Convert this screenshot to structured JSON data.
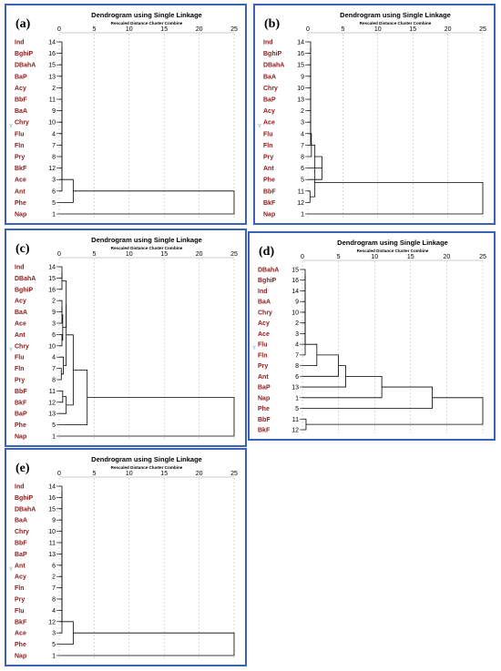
{
  "common": {
    "title": "Dendrogram using Single Linkage",
    "subtitle": "Rescaled Distance Cluster Combine",
    "ticks": [
      "0",
      "5",
      "10",
      "15",
      "20",
      "25"
    ],
    "marker": "Y"
  },
  "colors": {
    "frame": "#3a63b8",
    "label": "#8b1a1a",
    "line": "#000000",
    "grid": "#b5b5b5"
  },
  "chart_data": [
    {
      "type": "dendrogram",
      "panel": "(a)",
      "xlim": [
        0,
        25
      ],
      "leaves": [
        {
          "name": "Ind",
          "id": "14"
        },
        {
          "name": "BghiP",
          "id": "16"
        },
        {
          "name": "DBahA",
          "id": "15"
        },
        {
          "name": "BaP",
          "id": "13"
        },
        {
          "name": "Acy",
          "id": "2"
        },
        {
          "name": "BbF",
          "id": "11"
        },
        {
          "name": "BaA",
          "id": "9"
        },
        {
          "name": "Chry",
          "id": "10"
        },
        {
          "name": "Flu",
          "id": "4"
        },
        {
          "name": "Fln",
          "id": "7"
        },
        {
          "name": "Pry",
          "id": "8"
        },
        {
          "name": "BkF",
          "id": "12"
        },
        {
          "name": "Ace",
          "id": "3"
        },
        {
          "name": "Ant",
          "id": "6"
        },
        {
          "name": "Phe",
          "id": "5"
        },
        {
          "name": "Nap",
          "id": "1"
        }
      ],
      "merges": [
        [
          0,
          1,
          0
        ],
        [
          16,
          2,
          0
        ],
        [
          17,
          3,
          0
        ],
        [
          18,
          4,
          0
        ],
        [
          19,
          5,
          0
        ],
        [
          20,
          6,
          0
        ],
        [
          21,
          7,
          0
        ],
        [
          22,
          8,
          0
        ],
        [
          23,
          9,
          0
        ],
        [
          24,
          10,
          0
        ],
        [
          25,
          11,
          0
        ],
        [
          26,
          12,
          0
        ],
        [
          27,
          13,
          0
        ],
        [
          28,
          14,
          2
        ],
        [
          29,
          15,
          25
        ]
      ]
    },
    {
      "type": "dendrogram",
      "panel": "(b)",
      "xlim": [
        0,
        25
      ],
      "leaves": [
        {
          "name": "Ind",
          "id": "14"
        },
        {
          "name": "BghiP",
          "id": "16"
        },
        {
          "name": "DBahA",
          "id": "15"
        },
        {
          "name": "BaA",
          "id": "9"
        },
        {
          "name": "Chry",
          "id": "10"
        },
        {
          "name": "BaP",
          "id": "13"
        },
        {
          "name": "Acy",
          "id": "2"
        },
        {
          "name": "Ace",
          "id": "3"
        },
        {
          "name": "Flu",
          "id": "4"
        },
        {
          "name": "Fln",
          "id": "7"
        },
        {
          "name": "Pry",
          "id": "8"
        },
        {
          "name": "Ant",
          "id": "6"
        },
        {
          "name": "Phe",
          "id": "5"
        },
        {
          "name": "BbF",
          "id": "11"
        },
        {
          "name": "BkF",
          "id": "12"
        },
        {
          "name": "Nap",
          "id": "1"
        }
      ],
      "merges": [
        [
          0,
          1,
          0
        ],
        [
          16,
          2,
          0
        ],
        [
          17,
          3,
          0
        ],
        [
          18,
          4,
          0
        ],
        [
          19,
          5,
          0
        ],
        [
          20,
          6,
          0
        ],
        [
          21,
          7,
          0
        ],
        [
          22,
          8,
          0
        ],
        [
          23,
          9,
          0
        ],
        [
          24,
          10,
          0.5
        ],
        [
          25,
          11,
          1
        ],
        [
          26,
          12,
          2
        ],
        [
          13,
          14,
          0.3
        ],
        [
          27,
          28,
          1
        ],
        [
          29,
          15,
          25
        ]
      ]
    },
    {
      "type": "dendrogram",
      "panel": "(c)",
      "xlim": [
        0,
        25
      ],
      "leaves": [
        {
          "name": "Ind",
          "id": "14"
        },
        {
          "name": "DBahA",
          "id": "15"
        },
        {
          "name": "BghiP",
          "id": "16"
        },
        {
          "name": "Acy",
          "id": "2"
        },
        {
          "name": "BaA",
          "id": "9"
        },
        {
          "name": "Ace",
          "id": "3"
        },
        {
          "name": "Ant",
          "id": "6"
        },
        {
          "name": "Chry",
          "id": "10"
        },
        {
          "name": "Flu",
          "id": "4"
        },
        {
          "name": "Fln",
          "id": "7"
        },
        {
          "name": "Pry",
          "id": "8"
        },
        {
          "name": "BbF",
          "id": "11"
        },
        {
          "name": "BkF",
          "id": "12"
        },
        {
          "name": "BaP",
          "id": "13"
        },
        {
          "name": "Phe",
          "id": "5"
        },
        {
          "name": "Nap",
          "id": "1"
        }
      ],
      "merges": [
        [
          0,
          1,
          0
        ],
        [
          16,
          2,
          0
        ],
        [
          3,
          4,
          0
        ],
        [
          18,
          5,
          0
        ],
        [
          6,
          7,
          0
        ],
        [
          19,
          20,
          0.5
        ],
        [
          17,
          21,
          1
        ],
        [
          9,
          10,
          0.3
        ],
        [
          8,
          23,
          0.6
        ],
        [
          22,
          24,
          1
        ],
        [
          11,
          12,
          0.5
        ],
        [
          26,
          13,
          1
        ],
        [
          25,
          27,
          2
        ],
        [
          28,
          14,
          4
        ],
        [
          29,
          15,
          25
        ]
      ]
    },
    {
      "type": "dendrogram",
      "panel": "(d)",
      "xlim": [
        0,
        25
      ],
      "leaves": [
        {
          "name": "DBahA",
          "id": "15"
        },
        {
          "name": "BghiP",
          "id": "16"
        },
        {
          "name": "Ind",
          "id": "14"
        },
        {
          "name": "BaA",
          "id": "9"
        },
        {
          "name": "Chry",
          "id": "10"
        },
        {
          "name": "Acy",
          "id": "2"
        },
        {
          "name": "Ace",
          "id": "3"
        },
        {
          "name": "Flu",
          "id": "4"
        },
        {
          "name": "Fln",
          "id": "7"
        },
        {
          "name": "Pry",
          "id": "8"
        },
        {
          "name": "Ant",
          "id": "6"
        },
        {
          "name": "BaP",
          "id": "13"
        },
        {
          "name": "Nap",
          "id": "1"
        },
        {
          "name": "Phe",
          "id": "5"
        },
        {
          "name": "BbF",
          "id": "11"
        },
        {
          "name": "BkF",
          "id": "12"
        }
      ],
      "merges": [
        [
          0,
          1,
          0
        ],
        [
          16,
          2,
          0
        ],
        [
          17,
          3,
          0
        ],
        [
          18,
          4,
          0
        ],
        [
          19,
          5,
          0
        ],
        [
          20,
          6,
          0
        ],
        [
          21,
          7,
          0
        ],
        [
          22,
          8,
          0
        ],
        [
          23,
          9,
          2
        ],
        [
          24,
          10,
          5
        ],
        [
          25,
          11,
          6
        ],
        [
          26,
          12,
          11
        ],
        [
          27,
          13,
          18
        ],
        [
          14,
          15,
          0.5
        ],
        [
          28,
          29,
          25
        ]
      ]
    },
    {
      "type": "dendrogram",
      "panel": "(e)",
      "xlim": [
        0,
        25
      ],
      "leaves": [
        {
          "name": "Ind",
          "id": "14"
        },
        {
          "name": "BghiP",
          "id": "16"
        },
        {
          "name": "DBahA",
          "id": "15"
        },
        {
          "name": "BaA",
          "id": "9"
        },
        {
          "name": "Chry",
          "id": "10"
        },
        {
          "name": "BbF",
          "id": "11"
        },
        {
          "name": "BaP",
          "id": "13"
        },
        {
          "name": "Ant",
          "id": "6"
        },
        {
          "name": "Acy",
          "id": "2"
        },
        {
          "name": "Fln",
          "id": "7"
        },
        {
          "name": "Pry",
          "id": "8"
        },
        {
          "name": "Flu",
          "id": "4"
        },
        {
          "name": "BkF",
          "id": "12"
        },
        {
          "name": "Ace",
          "id": "3"
        },
        {
          "name": "Phe",
          "id": "5"
        },
        {
          "name": "Nap",
          "id": "1"
        }
      ],
      "merges": [
        [
          0,
          1,
          0
        ],
        [
          16,
          2,
          0
        ],
        [
          17,
          3,
          0
        ],
        [
          18,
          4,
          0
        ],
        [
          19,
          5,
          0
        ],
        [
          20,
          6,
          0
        ],
        [
          21,
          7,
          0
        ],
        [
          22,
          8,
          0
        ],
        [
          23,
          9,
          0
        ],
        [
          24,
          10,
          0
        ],
        [
          25,
          11,
          0
        ],
        [
          26,
          12,
          0
        ],
        [
          27,
          13,
          0
        ],
        [
          28,
          14,
          2
        ],
        [
          29,
          15,
          25
        ]
      ]
    }
  ]
}
